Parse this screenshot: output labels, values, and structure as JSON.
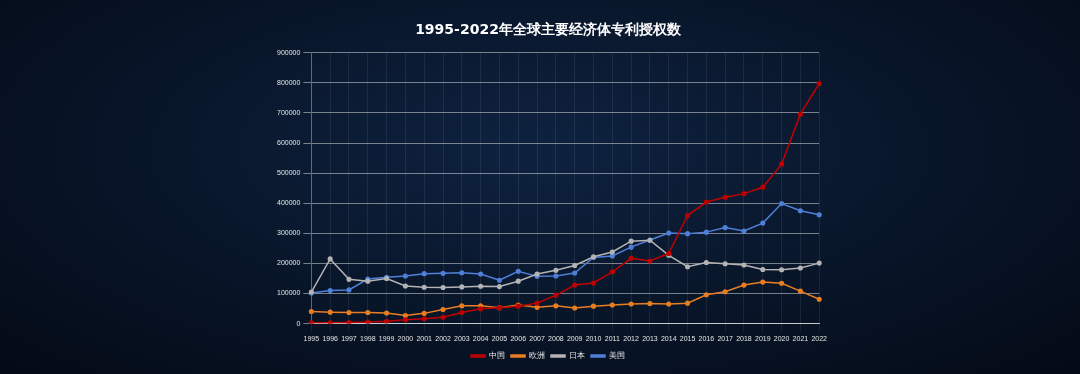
{
  "chart_data": {
    "type": "line",
    "title": "1995-2022年全球主要经济体专利授权数",
    "categories": [
      "1995",
      "1996",
      "1997",
      "1998",
      "1999",
      "2000",
      "2001",
      "2002",
      "2003",
      "2004",
      "2005",
      "2006",
      "2007",
      "2008",
      "2009",
      "2010",
      "2011",
      "2012",
      "2013",
      "2014",
      "2015",
      "2016",
      "2017",
      "2018",
      "2019",
      "2020",
      "2021",
      "2022"
    ],
    "series": [
      {
        "name": "中国",
        "color": "#c00000",
        "marker": "circle",
        "values": [
          3000,
          3000,
          3500,
          5000,
          7500,
          13000,
          16000,
          21000,
          37000,
          49000,
          53000,
          58000,
          68000,
          94000,
          128000,
          135000,
          172000,
          217000,
          208000,
          233000,
          359000,
          404000,
          420000,
          432000,
          453000,
          530000,
          696000,
          798000
        ]
      },
      {
        "name": "欧洲",
        "color": "#e87e22",
        "marker": "circle",
        "values": [
          40000,
          38000,
          37000,
          37000,
          35000,
          27000,
          34000,
          47000,
          59000,
          59000,
          53000,
          62000,
          54000,
          59000,
          52000,
          58000,
          62000,
          65000,
          67000,
          65000,
          68000,
          96000,
          106000,
          128000,
          138000,
          134000,
          108000,
          81000
        ]
      },
      {
        "name": "日本",
        "color": "#b4b4b4",
        "marker": "circle",
        "values": [
          105000,
          215000,
          147000,
          141000,
          150000,
          125000,
          121000,
          120000,
          122000,
          124000,
          123000,
          141000,
          165000,
          177000,
          193000,
          222000,
          238000,
          274000,
          277000,
          227000,
          189000,
          203000,
          199000,
          195000,
          180000,
          179000,
          185000,
          201000
        ]
      },
      {
        "name": "美国",
        "color": "#4f7fd8",
        "marker": "circle",
        "values": [
          102000,
          110000,
          112000,
          148000,
          154000,
          158000,
          166000,
          167000,
          169000,
          165000,
          144000,
          174000,
          157000,
          158000,
          168000,
          220000,
          225000,
          254000,
          278000,
          301000,
          299000,
          304000,
          319000,
          308000,
          334000,
          399000,
          375000,
          362000
        ]
      }
    ],
    "ylim": [
      0,
      900000
    ],
    "yticks": [
      0,
      100000,
      200000,
      300000,
      400000,
      500000,
      600000,
      700000,
      800000,
      900000
    ],
    "grid": true,
    "legend": "bottom"
  }
}
